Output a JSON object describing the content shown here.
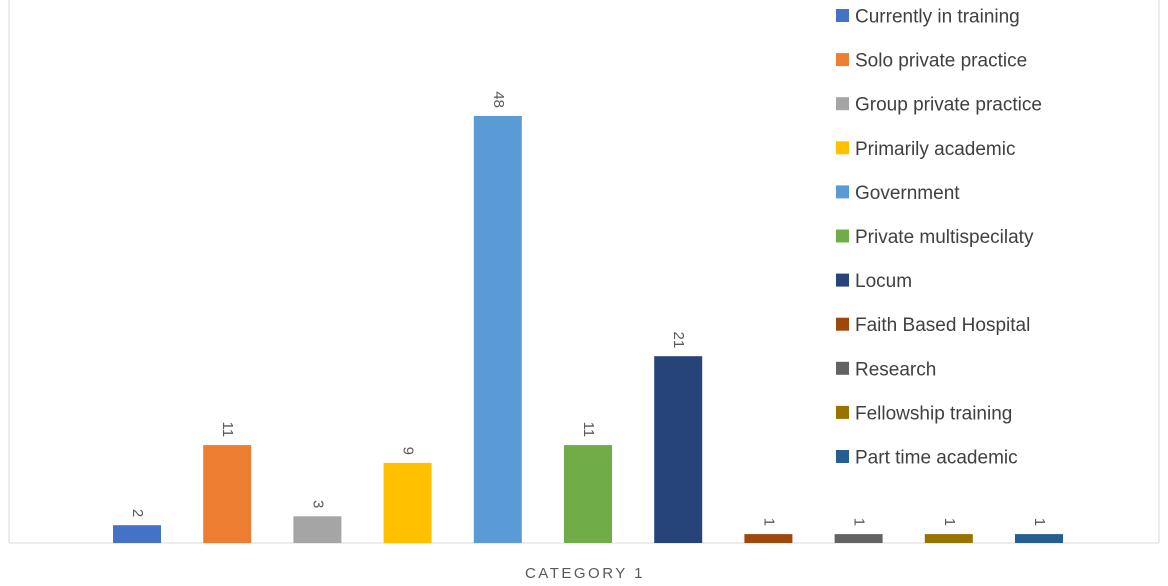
{
  "chart_data": {
    "type": "bar",
    "categories": [
      "CATEGORY 1"
    ],
    "title": "",
    "xlabel": "",
    "ylabel": "",
    "ylim": [
      0,
      50
    ],
    "grid": false,
    "legend_position": "right",
    "data_labels": true,
    "series": [
      {
        "name": "Currently in training",
        "value": 2,
        "color": "#4472C4"
      },
      {
        "name": "Solo private practice",
        "value": 11,
        "color": "#ED7D31"
      },
      {
        "name": "Group private practice",
        "value": 3,
        "color": "#A5A5A5"
      },
      {
        "name": "Primarily academic",
        "value": 9,
        "color": "#FFC000"
      },
      {
        "name": "Government",
        "value": 48,
        "color": "#5B9BD5"
      },
      {
        "name": "Private multispecilaty",
        "value": 11,
        "color": "#70AD47"
      },
      {
        "name": "Locum",
        "value": 21,
        "color": "#264478"
      },
      {
        "name": "Faith Based Hospital",
        "value": 1,
        "color": "#9E480E"
      },
      {
        "name": "Research",
        "value": 1,
        "color": "#636363"
      },
      {
        "name": "Fellowship training",
        "value": 1,
        "color": "#997300"
      },
      {
        "name": "Part time academic",
        "value": 1,
        "color": "#255E91"
      }
    ]
  }
}
